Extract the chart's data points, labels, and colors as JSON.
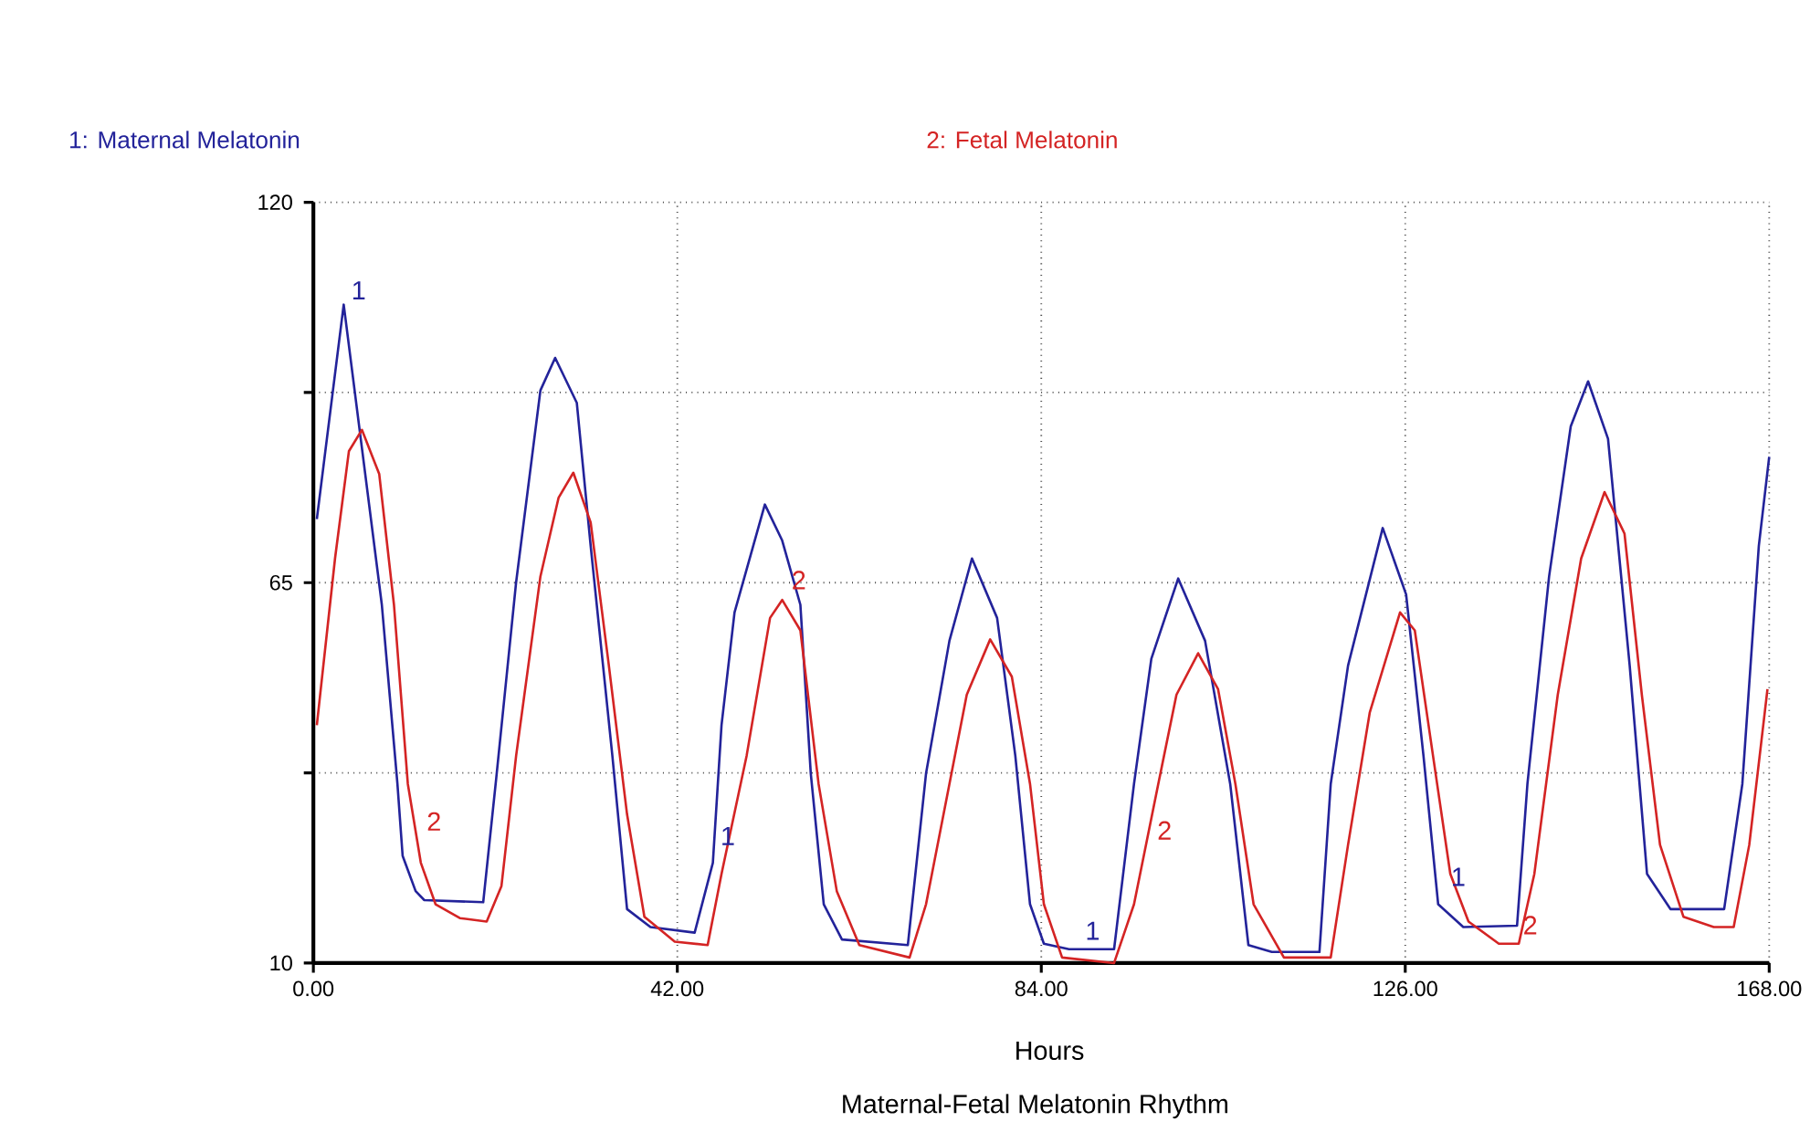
{
  "chart_data": {
    "type": "line",
    "title": "Maternal-Fetal Melatonin Rhythm",
    "xlabel": "Hours",
    "xlim": [
      0,
      168
    ],
    "ylim": [
      10,
      120
    ],
    "xticks": [
      {
        "value": 0,
        "label": "0.00"
      },
      {
        "value": 42,
        "label": "42.00"
      },
      {
        "value": 84,
        "label": "84.00"
      },
      {
        "value": 126,
        "label": "126.00"
      },
      {
        "value": 168,
        "label": "168.00"
      }
    ],
    "yticks": [
      10,
      {
        "value": 37.5,
        "label": null
      },
      65,
      {
        "value": 92.5,
        "label": null
      },
      120
    ],
    "grid": true,
    "legend": "top",
    "line_style": "solid",
    "marker": "none",
    "series": [
      {
        "name": "1: Maternal Melatonin",
        "color": "#23239a",
        "x": [
          0.4,
          3.5,
          7.9,
          9.7,
          10.3,
          11.8,
          12.8,
          19.6,
          21.1,
          23.4,
          26.2,
          27.9,
          30.4,
          32.0,
          34.5,
          36.2,
          38.9,
          44.0,
          46.1,
          47.1,
          48.6,
          52.1,
          54.1,
          56.2,
          57.4,
          58.9,
          61.0,
          68.6,
          70.7,
          73.4,
          76.0,
          78.9,
          81.0,
          82.7,
          84.3,
          87.2,
          92.4,
          94.7,
          96.7,
          99.8,
          102.9,
          105.8,
          107.9,
          110.6,
          116.1,
          117.4,
          119.4,
          123.4,
          126.1,
          128.1,
          129.8,
          132.7,
          138.9,
          140.1,
          142.6,
          145.1,
          147.1,
          149.4,
          151.9,
          153.9,
          156.6,
          162.8,
          164.9,
          166.8,
          168.0
        ],
        "values": [
          74.2,
          105.2,
          61.8,
          35.9,
          25.5,
          20.4,
          19.1,
          18.8,
          36.7,
          65.1,
          92.8,
          97.5,
          91.0,
          70.3,
          40.0,
          17.8,
          15.2,
          14.4,
          24.5,
          44.4,
          60.7,
          76.3,
          71.1,
          61.8,
          37.4,
          18.5,
          13.4,
          12.6,
          37.4,
          56.6,
          68.5,
          59.9,
          40.0,
          18.5,
          12.8,
          12.0,
          12.0,
          35.9,
          54.0,
          65.6,
          56.6,
          35.9,
          12.6,
          11.6,
          11.6,
          35.9,
          53.0,
          72.9,
          63.3,
          40.0,
          18.5,
          15.2,
          15.4,
          35.9,
          65.9,
          87.6,
          94.1,
          85.8,
          53.0,
          22.9,
          17.8,
          17.8,
          35.9,
          70.3,
          83.2
        ]
      },
      {
        "name": "2: Fetal Melatonin",
        "color": "#d42424",
        "x": [
          0.4,
          2.5,
          4.1,
          5.6,
          7.6,
          9.3,
          10.9,
          12.4,
          14.1,
          16.9,
          20.0,
          21.7,
          23.4,
          26.2,
          28.3,
          30.0,
          32.0,
          34.1,
          36.2,
          38.2,
          41.7,
          45.5,
          47.1,
          50.0,
          52.7,
          54.1,
          56.2,
          58.3,
          60.4,
          63.0,
          68.8,
          70.7,
          73.4,
          75.4,
          78.1,
          80.6,
          82.7,
          84.3,
          86.4,
          92.4,
          94.7,
          97.5,
          99.6,
          102.1,
          104.4,
          106.4,
          108.5,
          112.0,
          117.4,
          119.4,
          121.9,
          125.4,
          127.1,
          129.2,
          131.2,
          133.3,
          136.8,
          139.1,
          140.9,
          143.6,
          146.3,
          149.0,
          151.3,
          153.3,
          155.4,
          158.1,
          161.6,
          163.9,
          165.7,
          167.8
        ],
        "values": [
          44.4,
          68.5,
          84.0,
          87.1,
          80.7,
          61.8,
          35.9,
          24.5,
          18.5,
          16.5,
          16.0,
          21.1,
          40.0,
          65.9,
          77.3,
          80.9,
          73.7,
          53.0,
          31.5,
          16.7,
          13.1,
          12.6,
          22.9,
          40.0,
          59.9,
          62.5,
          58.1,
          35.9,
          20.4,
          12.6,
          10.8,
          18.5,
          35.9,
          48.8,
          56.8,
          51.4,
          35.9,
          18.5,
          10.8,
          10.0,
          18.5,
          35.9,
          48.8,
          54.8,
          49.6,
          35.9,
          18.5,
          10.8,
          10.8,
          27.1,
          46.2,
          60.7,
          58.1,
          40.0,
          22.9,
          16.0,
          12.8,
          12.8,
          22.9,
          48.8,
          68.5,
          78.1,
          72.1,
          48.8,
          27.1,
          16.7,
          15.2,
          15.2,
          27.1,
          49.6
        ]
      }
    ],
    "annotations": [
      {
        "text": "1",
        "x": 3.5,
        "y": 105.2
      },
      {
        "text": "1",
        "x": 46.1,
        "y": 26.3
      },
      {
        "text": "1",
        "x": 88.2,
        "y": 12.6
      },
      {
        "text": "1",
        "x": 130.4,
        "y": 20.4
      },
      {
        "text": "2",
        "x": 12.2,
        "y": 28.4
      },
      {
        "text": "2",
        "x": 54.3,
        "y": 63.3
      },
      {
        "text": "2",
        "x": 96.5,
        "y": 27.1
      },
      {
        "text": "2",
        "x": 138.7,
        "y": 13.4
      }
    ]
  }
}
